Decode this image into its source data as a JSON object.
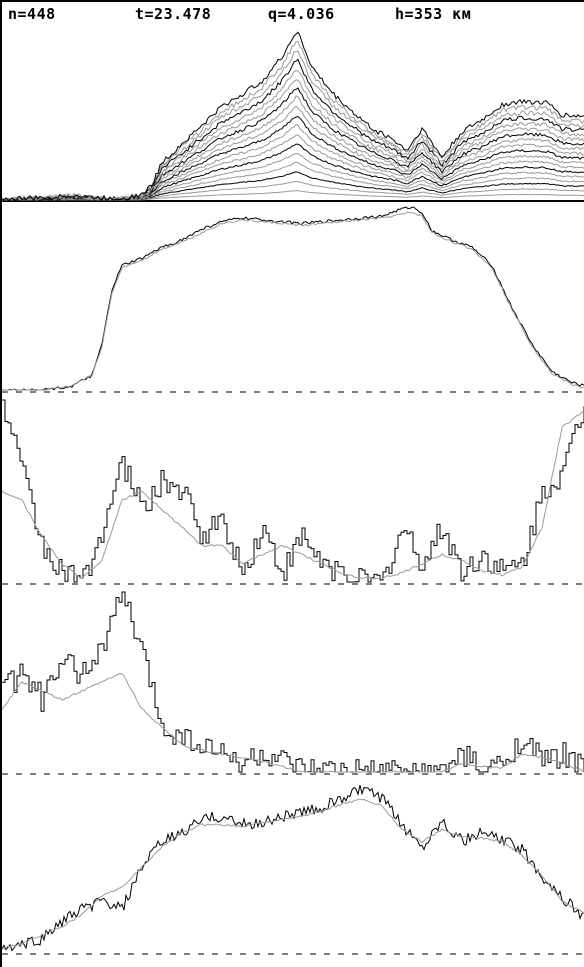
{
  "header": {
    "n": "n=448",
    "t": "t=23.478",
    "q": "q=4.036",
    "h": "h=353 км"
  },
  "colors": {
    "trace_dark": "#000000",
    "trace_light": "#9a9a9a",
    "separator": "#000000",
    "baseline_dash": "#000000"
  },
  "chart_data": [
    {
      "type": "line",
      "panel": "spectrogram-stack",
      "description_series": "stacked profiles",
      "x": [
        0,
        20,
        40,
        60,
        70,
        80,
        100,
        120,
        140,
        150,
        160,
        180,
        200,
        220,
        240,
        260,
        280,
        295,
        310,
        330,
        350,
        370,
        390,
        405,
        420,
        440,
        460,
        480,
        500,
        520,
        545,
        560,
        584
      ],
      "envelope": [
        0,
        1,
        1,
        2,
        3,
        2,
        1,
        1,
        3,
        9,
        22,
        33,
        44,
        55,
        62,
        70,
        84,
        100,
        78,
        63,
        52,
        42,
        36,
        29,
        42,
        25,
        40,
        47,
        56,
        58,
        57,
        50,
        49
      ],
      "layers": 18
    },
    {
      "type": "line",
      "panel": "profile-1",
      "x": [
        0,
        40,
        70,
        90,
        100,
        110,
        120,
        140,
        160,
        180,
        200,
        220,
        240,
        260,
        280,
        300,
        320,
        340,
        360,
        380,
        400,
        410,
        420,
        430,
        450,
        470,
        490,
        510,
        530,
        550,
        570,
        584
      ],
      "series": [
        {
          "values": [
            0,
            0,
            2,
            8,
            25,
            55,
            68,
            72,
            78,
            82,
            88,
            92,
            94,
            93,
            92,
            91,
            92,
            93,
            94,
            95,
            99,
            100,
            97,
            87,
            82,
            78,
            68,
            45,
            25,
            10,
            4,
            2
          ]
        },
        {
          "values": [
            0,
            0,
            2,
            8,
            24,
            53,
            67,
            71,
            77,
            81,
            86,
            91,
            93,
            92,
            91,
            90,
            91,
            92,
            93,
            94,
            96,
            97,
            95,
            86,
            81,
            77,
            67,
            44,
            24,
            9,
            3,
            1
          ]
        }
      ]
    },
    {
      "type": "line",
      "panel": "profile-2",
      "x": [
        0,
        20,
        40,
        60,
        80,
        100,
        120,
        140,
        160,
        180,
        200,
        220,
        240,
        260,
        280,
        300,
        320,
        340,
        360,
        380,
        400,
        420,
        440,
        460,
        480,
        500,
        520,
        540,
        560,
        584
      ],
      "series": [
        {
          "values": [
            100,
            60,
            20,
            5,
            0,
            30,
            65,
            40,
            55,
            50,
            25,
            35,
            5,
            30,
            5,
            25,
            10,
            5,
            0,
            0,
            30,
            10,
            30,
            5,
            15,
            5,
            10,
            50,
            60,
            100
          ]
        },
        {
          "values": [
            50,
            45,
            25,
            10,
            2,
            12,
            45,
            50,
            40,
            30,
            20,
            20,
            10,
            15,
            20,
            15,
            10,
            5,
            2,
            2,
            5,
            10,
            15,
            12,
            6,
            4,
            8,
            30,
            85,
            95
          ]
        }
      ]
    },
    {
      "type": "line",
      "panel": "profile-3",
      "x": [
        0,
        20,
        40,
        60,
        80,
        100,
        120,
        140,
        160,
        180,
        200,
        220,
        240,
        260,
        280,
        300,
        320,
        340,
        360,
        380,
        400,
        420,
        440,
        460,
        480,
        500,
        520,
        540,
        560,
        584
      ],
      "series": [
        {
          "values": [
            45,
            55,
            40,
            60,
            55,
            70,
            100,
            65,
            25,
            20,
            15,
            10,
            5,
            10,
            5,
            0,
            0,
            0,
            0,
            0,
            0,
            0,
            0,
            10,
            0,
            5,
            20,
            5,
            10,
            0
          ]
        },
        {
          "values": [
            35,
            50,
            45,
            40,
            45,
            50,
            55,
            35,
            25,
            15,
            12,
            10,
            8,
            6,
            3,
            0,
            0,
            0,
            0,
            0,
            0,
            0,
            0,
            5,
            3,
            2,
            10,
            8,
            5,
            0
          ]
        }
      ]
    },
    {
      "type": "line",
      "panel": "profile-4",
      "x": [
        0,
        20,
        40,
        60,
        80,
        100,
        120,
        140,
        160,
        180,
        200,
        220,
        240,
        260,
        280,
        300,
        320,
        340,
        360,
        380,
        400,
        420,
        440,
        460,
        480,
        500,
        520,
        540,
        560,
        584
      ],
      "series": [
        {
          "values": [
            2,
            4,
            8,
            18,
            25,
            30,
            25,
            50,
            65,
            70,
            78,
            80,
            75,
            76,
            80,
            82,
            85,
            90,
            96,
            90,
            75,
            62,
            78,
            65,
            70,
            66,
            60,
            45,
            32,
            20
          ]
        },
        {
          "values": [
            2,
            5,
            10,
            15,
            22,
            33,
            38,
            50,
            62,
            70,
            75,
            75,
            74,
            76,
            78,
            80,
            83,
            87,
            90,
            86,
            72,
            65,
            72,
            68,
            67,
            65,
            57,
            45,
            30,
            22
          ]
        }
      ]
    }
  ]
}
